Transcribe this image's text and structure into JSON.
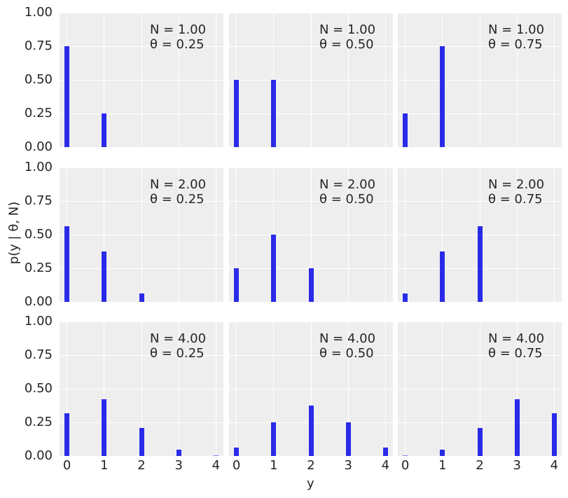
{
  "chart_data": {
    "type": "bar",
    "layout": {
      "rows": 3,
      "cols": 3,
      "sharex": true,
      "sharey": true
    },
    "xlabel": "y",
    "ylabel": "p(y | θ, N)",
    "ylim": [
      0,
      1
    ],
    "yticks": [
      "0.00",
      "0.25",
      "0.50",
      "0.75",
      "1.00"
    ],
    "xticks": [
      "0",
      "1",
      "2",
      "3",
      "4"
    ],
    "xlim": [
      -0.2,
      4.2
    ],
    "grid": true,
    "bar_color": "#2a2ae9",
    "background_color": "#eeeeee",
    "panels": [
      {
        "row": 0,
        "col": 0,
        "label_n": "N = 1.00",
        "label_theta": "θ = 0.25",
        "x": [
          0,
          1
        ],
        "values": [
          0.75,
          0.25
        ]
      },
      {
        "row": 0,
        "col": 1,
        "label_n": "N = 1.00",
        "label_theta": "θ = 0.50",
        "x": [
          0,
          1
        ],
        "values": [
          0.5,
          0.5
        ]
      },
      {
        "row": 0,
        "col": 2,
        "label_n": "N = 1.00",
        "label_theta": "θ = 0.75",
        "x": [
          0,
          1
        ],
        "values": [
          0.25,
          0.75
        ]
      },
      {
        "row": 1,
        "col": 0,
        "label_n": "N = 2.00",
        "label_theta": "θ = 0.25",
        "x": [
          0,
          1,
          2
        ],
        "values": [
          0.5625,
          0.375,
          0.0625
        ]
      },
      {
        "row": 1,
        "col": 1,
        "label_n": "N = 2.00",
        "label_theta": "θ = 0.50",
        "x": [
          0,
          1,
          2
        ],
        "values": [
          0.25,
          0.5,
          0.25
        ]
      },
      {
        "row": 1,
        "col": 2,
        "label_n": "N = 2.00",
        "label_theta": "θ = 0.75",
        "x": [
          0,
          1,
          2
        ],
        "values": [
          0.0625,
          0.375,
          0.5625
        ]
      },
      {
        "row": 2,
        "col": 0,
        "label_n": "N = 4.00",
        "label_theta": "θ = 0.25",
        "x": [
          0,
          1,
          2,
          3,
          4
        ],
        "values": [
          0.3164,
          0.4219,
          0.2109,
          0.0469,
          0.0039
        ]
      },
      {
        "row": 2,
        "col": 1,
        "label_n": "N = 4.00",
        "label_theta": "θ = 0.50",
        "x": [
          0,
          1,
          2,
          3,
          4
        ],
        "values": [
          0.0625,
          0.25,
          0.375,
          0.25,
          0.0625
        ]
      },
      {
        "row": 2,
        "col": 2,
        "label_n": "N = 4.00",
        "label_theta": "θ = 0.75",
        "x": [
          0,
          1,
          2,
          3,
          4
        ],
        "values": [
          0.0039,
          0.0469,
          0.2109,
          0.4219,
          0.3164
        ]
      }
    ]
  }
}
